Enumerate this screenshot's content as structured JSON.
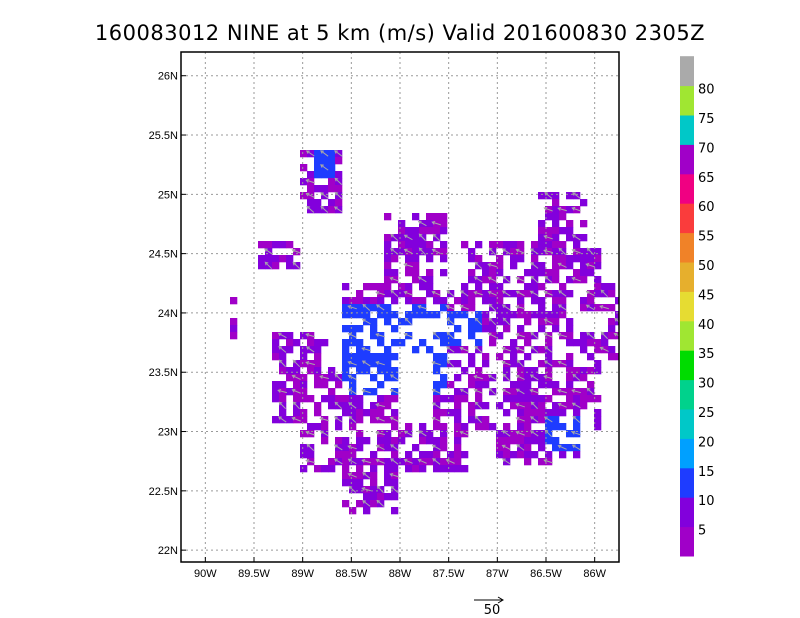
{
  "title": "160083012 NINE at 5 km (m/s) Valid 201600830 2305Z",
  "map": {
    "lon_range": [
      -90.25,
      -85.75
    ],
    "lat_range": [
      21.9,
      26.2
    ],
    "grid": true
  },
  "x_ticks": [
    {
      "value": -90.0,
      "label": "90W"
    },
    {
      "value": -89.5,
      "label": "89.5W"
    },
    {
      "value": -89.0,
      "label": "89W"
    },
    {
      "value": -88.5,
      "label": "88.5W"
    },
    {
      "value": -88.0,
      "label": "88W"
    },
    {
      "value": -87.5,
      "label": "87.5W"
    },
    {
      "value": -87.0,
      "label": "87W"
    },
    {
      "value": -86.5,
      "label": "86.5W"
    },
    {
      "value": -86.0,
      "label": "86W"
    }
  ],
  "y_ticks": [
    {
      "value": 26.0,
      "label": "26N"
    },
    {
      "value": 25.5,
      "label": "25.5N"
    },
    {
      "value": 25.0,
      "label": "25N"
    },
    {
      "value": 24.5,
      "label": "24.5N"
    },
    {
      "value": 24.0,
      "label": "24N"
    },
    {
      "value": 23.5,
      "label": "23.5N"
    },
    {
      "value": 23.0,
      "label": "23N"
    },
    {
      "value": 22.5,
      "label": "22.5N"
    },
    {
      "value": 22.0,
      "label": "22N"
    }
  ],
  "colorbar": {
    "bins": [
      {
        "label": "5",
        "color": "#a000c8"
      },
      {
        "label": "10",
        "color": "#8200dc"
      },
      {
        "label": "15",
        "color": "#1e3cff"
      },
      {
        "label": "20",
        "color": "#00a0ff"
      },
      {
        "label": "25",
        "color": "#00c8c8"
      },
      {
        "label": "30",
        "color": "#00d28c"
      },
      {
        "label": "35",
        "color": "#00dc00"
      },
      {
        "label": "40",
        "color": "#a0e632"
      },
      {
        "label": "45",
        "color": "#e6dc32"
      },
      {
        "label": "50",
        "color": "#e6af2d"
      },
      {
        "label": "55",
        "color": "#f08228"
      },
      {
        "label": "60",
        "color": "#fa3c3c"
      },
      {
        "label": "65",
        "color": "#f00082"
      },
      {
        "label": "70",
        "color": "#a000c8"
      },
      {
        "label": "75",
        "color": "#00c8c8"
      },
      {
        "label": "80",
        "color": "#a0e632"
      },
      {
        "label": "",
        "color": "#aaaaaa"
      }
    ]
  },
  "reference_vector": {
    "label": "50"
  },
  "field_colors": {
    "low": "#8200dc",
    "mid": "#1e3cff",
    "high": "#a000c8",
    "vector": "#a8a8a8"
  }
}
